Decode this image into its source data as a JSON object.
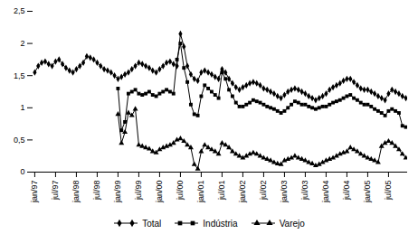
{
  "chart_data": {
    "type": "line",
    "categories": [
      "jan/97",
      null,
      null,
      null,
      null,
      null,
      "jul/97",
      null,
      null,
      null,
      null,
      null,
      "jan/98",
      null,
      null,
      null,
      null,
      null,
      "jul/98",
      null,
      null,
      null,
      null,
      null,
      "jan/99",
      null,
      null,
      null,
      null,
      null,
      "jul/99",
      null,
      null,
      null,
      null,
      null,
      "jan/00",
      null,
      null,
      null,
      null,
      null,
      "jul/00",
      null,
      null,
      null,
      null,
      null,
      "jan/01",
      null,
      null,
      null,
      null,
      null,
      "jul/01",
      null,
      null,
      null,
      null,
      null,
      "jan/02",
      null,
      null,
      null,
      null,
      null,
      "jul/02",
      null,
      null,
      null,
      null,
      null,
      "jan/03",
      null,
      null,
      null,
      null,
      null,
      "jul/03",
      null,
      null,
      null,
      null,
      null,
      "jan/04",
      null,
      null,
      null,
      null,
      null,
      "jul/04",
      null,
      null,
      null,
      null,
      null,
      "jan/05",
      null,
      null,
      null,
      null,
      null,
      "jul/05",
      null,
      null,
      null,
      null,
      null
    ],
    "series": [
      {
        "name": "Total",
        "color": "black",
        "marker": "diamond",
        "values": [
          1.55,
          1.65,
          1.7,
          1.72,
          1.68,
          1.65,
          1.72,
          1.75,
          1.68,
          1.62,
          1.58,
          1.55,
          1.6,
          1.65,
          1.7,
          1.8,
          1.78,
          1.75,
          1.7,
          1.65,
          1.6,
          1.58,
          1.55,
          1.5,
          1.45,
          1.48,
          1.52,
          1.55,
          1.6,
          1.65,
          1.7,
          1.68,
          1.65,
          1.62,
          1.58,
          1.55,
          1.6,
          1.65,
          1.7,
          1.72,
          1.68,
          1.65,
          2.15,
          1.95,
          1.65,
          1.52,
          1.45,
          1.42,
          1.55,
          1.58,
          1.55,
          1.52,
          1.48,
          1.45,
          1.6,
          1.55,
          1.45,
          1.38,
          1.32,
          1.28,
          1.32,
          1.35,
          1.38,
          1.4,
          1.38,
          1.35,
          1.3,
          1.28,
          1.25,
          1.22,
          1.18,
          1.15,
          1.2,
          1.25,
          1.28,
          1.3,
          1.28,
          1.25,
          1.22,
          1.18,
          1.15,
          1.12,
          1.15,
          1.18,
          1.22,
          1.28,
          1.32,
          1.35,
          1.38,
          1.42,
          1.45,
          1.45,
          1.4,
          1.35,
          1.3,
          1.28,
          1.28,
          1.25,
          1.22,
          1.18,
          1.15,
          1.12,
          1.22,
          1.28,
          1.25,
          1.22,
          1.18,
          1.15
        ]
      },
      {
        "name": "Indústria",
        "color": "black",
        "marker": "square",
        "values": [
          null,
          null,
          null,
          null,
          null,
          null,
          null,
          null,
          null,
          null,
          null,
          null,
          null,
          null,
          null,
          null,
          null,
          null,
          null,
          null,
          null,
          null,
          null,
          null,
          1.3,
          0.65,
          0.78,
          1.22,
          1.25,
          1.28,
          1.22,
          1.2,
          1.22,
          1.25,
          1.2,
          1.18,
          1.22,
          1.25,
          1.28,
          1.25,
          1.22,
          1.75,
          2.0,
          1.62,
          1.4,
          1.05,
          0.9,
          0.88,
          1.18,
          1.35,
          1.3,
          1.25,
          1.2,
          1.15,
          1.55,
          1.45,
          1.28,
          1.18,
          1.08,
          1.02,
          1.02,
          1.05,
          1.08,
          1.12,
          1.1,
          1.08,
          1.05,
          1.02,
          1.0,
          0.98,
          0.95,
          0.92,
          0.95,
          1.0,
          1.05,
          1.1,
          1.08,
          1.05,
          1.05,
          1.02,
          1.0,
          0.98,
          1.0,
          1.02,
          1.02,
          1.05,
          1.08,
          1.1,
          1.12,
          1.15,
          1.18,
          1.2,
          1.15,
          1.12,
          1.08,
          1.05,
          1.05,
          1.02,
          0.98,
          0.95,
          0.92,
          0.88,
          0.95,
          0.98,
          0.95,
          0.92,
          0.72,
          0.7
        ]
      },
      {
        "name": "Varejo",
        "color": "black",
        "marker": "triangle",
        "values": [
          null,
          null,
          null,
          null,
          null,
          null,
          null,
          null,
          null,
          null,
          null,
          null,
          null,
          null,
          null,
          null,
          null,
          null,
          null,
          null,
          null,
          null,
          null,
          null,
          0.9,
          0.45,
          0.62,
          0.92,
          0.88,
          0.98,
          0.42,
          0.4,
          0.38,
          0.36,
          0.32,
          0.3,
          0.35,
          0.38,
          0.4,
          0.42,
          0.45,
          0.5,
          0.52,
          0.48,
          0.42,
          0.38,
          0.12,
          0.05,
          0.32,
          0.42,
          0.38,
          0.35,
          0.32,
          0.28,
          0.45,
          0.42,
          0.38,
          0.32,
          0.28,
          0.25,
          0.22,
          0.25,
          0.28,
          0.3,
          0.28,
          0.25,
          0.22,
          0.2,
          0.18,
          0.15,
          0.13,
          0.12,
          0.18,
          0.2,
          0.22,
          0.25,
          0.22,
          0.2,
          0.18,
          0.15,
          0.13,
          0.1,
          0.12,
          0.15,
          0.18,
          0.2,
          0.22,
          0.25,
          0.28,
          0.3,
          0.32,
          0.38,
          0.35,
          0.32,
          0.28,
          0.25,
          0.22,
          0.2,
          0.18,
          0.15,
          0.4,
          0.45,
          0.48,
          0.45,
          0.4,
          0.35,
          0.28,
          0.22
        ]
      }
    ],
    "ylim": [
      0,
      2.5
    ],
    "yticks": [
      0,
      {
        "value": 0.5,
        "label": "0,5"
      },
      1,
      {
        "value": 1.5,
        "label": "1,5"
      },
      2,
      {
        "value": 2.5,
        "label": "2,5"
      }
    ],
    "grid": false,
    "legend": "bottom"
  }
}
